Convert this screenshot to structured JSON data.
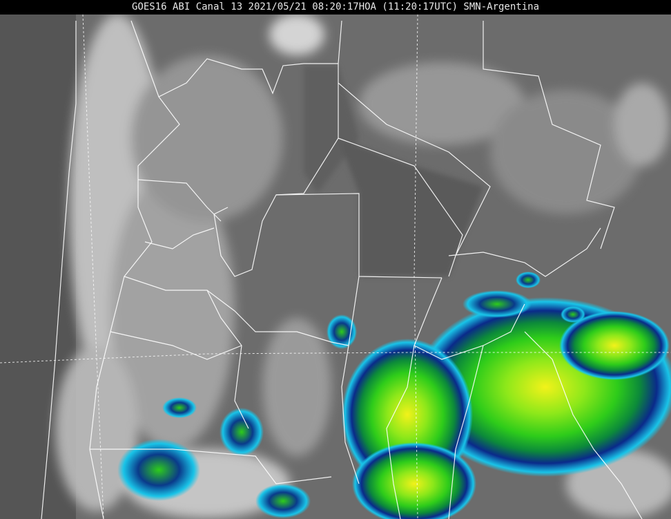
{
  "title": "GOES16 ABI Canal 13 2021/05/21 08:20:17HOA (11:20:17UTC) SMN-Argentina",
  "colors": {
    "background_gray": "#6a6a6a",
    "cloud_light": "#d8d8d8",
    "cold_top_blue": "#0a2a8a",
    "cold_top_cyan": "#19c4e8",
    "cold_top_green": "#3ed21a",
    "cold_top_yellow": "#f2f21a",
    "border_lines": "#ffffff"
  }
}
